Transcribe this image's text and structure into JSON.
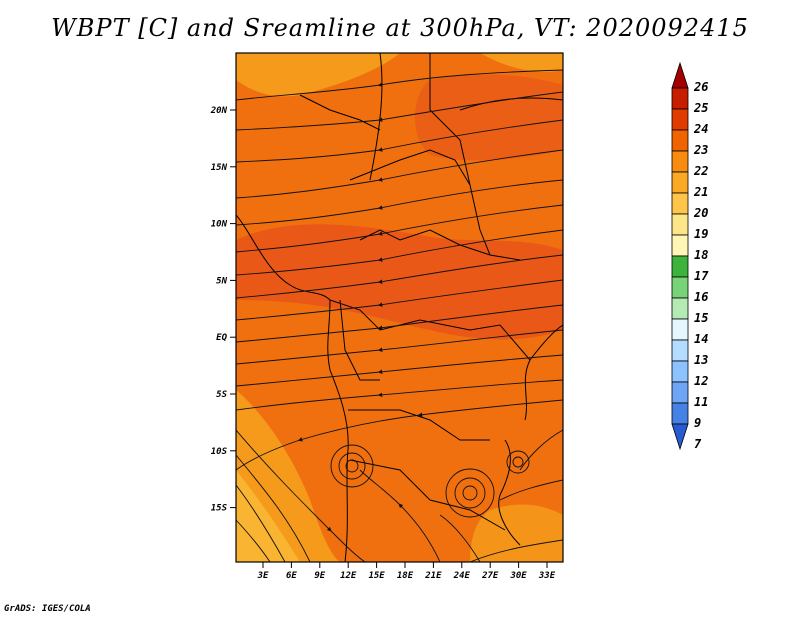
{
  "title": "WBPT [C] and Sreamline at 300hPa, VT: 2020092415",
  "credit": "GrADS: IGES/COLA",
  "lat_ticks": [
    "20N",
    "15N",
    "10N",
    "5N",
    "EQ",
    "5S",
    "10S",
    "15S"
  ],
  "lon_ticks": [
    "3E",
    "6E",
    "9E",
    "12E",
    "15E",
    "18E",
    "21E",
    "24E",
    "27E",
    "30E",
    "33E"
  ],
  "colorbar": {
    "labels": [
      "26",
      "25",
      "24",
      "23",
      "22",
      "21",
      "20",
      "19",
      "18",
      "17",
      "16",
      "15",
      "14",
      "13",
      "12",
      "11",
      "9",
      "7"
    ],
    "colors": [
      "#a50000",
      "#c81e00",
      "#e03c00",
      "#f06400",
      "#f78c10",
      "#faa924",
      "#fdc64a",
      "#fde68a",
      "#fff5b4",
      "#3cb43c",
      "#78d278",
      "#b4eab4",
      "#e6f6ff",
      "#b4dcff",
      "#8cc3ff",
      "#6ea6f5",
      "#4682e6",
      "#285ad2"
    ]
  },
  "field": {
    "base_color": "#f07010",
    "hot_color": "#e8501a",
    "cool_color": "#f59a1a",
    "edge_color": "#f9b531"
  }
}
